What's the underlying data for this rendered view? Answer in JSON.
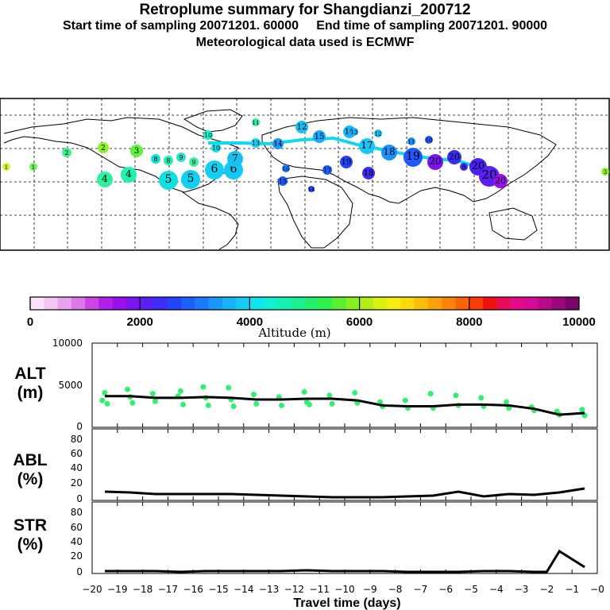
{
  "title": "Retroplume summary for Shangdianzi_200712",
  "subtitle_start_label": "Start time of sampling 20071201. 60000",
  "subtitle_end_label": "End time of sampling 20071201. 90000",
  "met_line": "Meteorological data used is ECMWF",
  "map_labels": [
    "1",
    "2",
    "3",
    "4",
    "5",
    "6",
    "7",
    "8",
    "9",
    "10",
    "11",
    "12",
    "13",
    "14",
    "15",
    "16",
    "17",
    "18",
    "19",
    "20"
  ],
  "colorbar": {
    "label": "Altitude (m)",
    "ticks": [
      "0",
      "2000",
      "4000",
      "6000",
      "8000",
      "10000"
    ],
    "colors": [
      "#fbe4fb",
      "#f3c6f3",
      "#e9a3ee",
      "#dc78e8",
      "#cc44e6",
      "#b41ee6",
      "#9a10ea",
      "#7a14f0",
      "#5a1ef6",
      "#3c2cf8",
      "#2244fa",
      "#1c60fb",
      "#1a7cfc",
      "#1898fc",
      "#16b2fa",
      "#12cdf6",
      "#0ee5ee",
      "#10f0d4",
      "#16f0b2",
      "#1cf090",
      "#22f06c",
      "#30f04c",
      "#58f030",
      "#86f020",
      "#b2f018",
      "#daf012",
      "#f6ee10",
      "#fcd80c",
      "#fcbe0a",
      "#fca208",
      "#fc8408",
      "#fa6408",
      "#f83c08",
      "#f01010",
      "#e80c58",
      "#e60a88",
      "#d60a98",
      "#ba0a8c",
      "#9a087c",
      "#7a066a"
    ]
  },
  "panels": {
    "alt": {
      "label1": "ALT",
      "label2": "(m)",
      "yticks": [
        "10000",
        "5000",
        "0"
      ]
    },
    "abl": {
      "label1": "ABL",
      "label2": "(%)",
      "yticks": [
        "80",
        "60",
        "40",
        "20",
        "0"
      ]
    },
    "str": {
      "label1": "STR",
      "label2": "(%)",
      "yticks": [
        "80",
        "60",
        "40",
        "20",
        "0"
      ]
    }
  },
  "xaxis": {
    "label": "Travel time (days)",
    "ticks": [
      "−20",
      "−19",
      "−18",
      "−17",
      "−16",
      "−15",
      "−14",
      "−13",
      "−12",
      "−11",
      "−10",
      "−9",
      "−8",
      "−7",
      "−6",
      "−5",
      "−4",
      "−3",
      "−2",
      "−1",
      "−0"
    ]
  },
  "chart_data": {
    "type": "line",
    "x_label": "Travel time (days)",
    "x_range": [
      -20,
      0
    ],
    "series": [
      {
        "name": "ALT (m)",
        "ylim": [
          0,
          10000
        ],
        "x": [
          -19.5,
          -18.5,
          -17.5,
          -16.5,
          -15.5,
          -14.5,
          -13.5,
          -12.5,
          -11.5,
          -10.5,
          -9.5,
          -8.5,
          -7.5,
          -6.5,
          -5.5,
          -4.5,
          -3.5,
          -2.5,
          -1.5,
          -0.5
        ],
        "values": [
          3700,
          3700,
          3500,
          3500,
          3600,
          3500,
          3300,
          3300,
          3400,
          3400,
          3200,
          2600,
          2500,
          2500,
          2700,
          2700,
          2600,
          2200,
          1500,
          1700
        ],
        "scatter_x": [
          -19.6,
          -19.5,
          -19.4,
          -18.6,
          -18.5,
          -18.4,
          -17.6,
          -17.5,
          -16.6,
          -16.5,
          -16.4,
          -15.6,
          -15.5,
          -15.4,
          -14.6,
          -14.5,
          -14.4,
          -13.6,
          -13.5,
          -12.6,
          -12.5,
          -11.6,
          -11.5,
          -11.4,
          -10.6,
          -10.5,
          -9.6,
          -9.5,
          -8.6,
          -8.5,
          -7.6,
          -7.5,
          -6.6,
          -6.5,
          -5.6,
          -5.5,
          -4.6,
          -4.5,
          -3.6,
          -3.5,
          -2.6,
          -2.5,
          -1.6,
          -1.5,
          -0.6,
          -0.5
        ],
        "scatter_values": [
          3200,
          4100,
          2800,
          4500,
          3600,
          2900,
          4000,
          3100,
          3700,
          4300,
          2700,
          4800,
          3500,
          2600,
          4700,
          3300,
          2500,
          3900,
          2800,
          3600,
          2600,
          4200,
          3000,
          2700,
          3800,
          2800,
          4100,
          2900,
          3000,
          2500,
          3200,
          2300,
          4000,
          2300,
          3800,
          2600,
          3500,
          2500,
          3000,
          2300,
          2400,
          2000,
          1900,
          1500,
          2100,
          1400
        ]
      },
      {
        "name": "ABL (%)",
        "ylim": [
          0,
          90
        ],
        "x": [
          -19.5,
          -18.5,
          -17.5,
          -16.5,
          -15.5,
          -14.5,
          -13.5,
          -12.5,
          -11.5,
          -10.5,
          -9.5,
          -8.5,
          -7.5,
          -6.5,
          -5.5,
          -4.5,
          -3.5,
          -2.5,
          -1.5,
          -0.5
        ],
        "values": [
          11,
          10,
          8,
          8,
          8,
          8,
          7,
          6,
          5,
          4,
          4,
          4,
          5,
          6,
          11,
          5,
          8,
          7,
          10,
          15
        ]
      },
      {
        "name": "STR (%)",
        "ylim": [
          0,
          90
        ],
        "x": [
          -19.5,
          -18.5,
          -17.5,
          -16.5,
          -15.5,
          -14.5,
          -13.5,
          -12.5,
          -11.5,
          -10.5,
          -9.5,
          -8.5,
          -7.5,
          -6.5,
          -5.5,
          -4.5,
          -3.5,
          -2.5,
          -2.0,
          -1.5,
          -0.5
        ],
        "values": [
          3,
          3,
          3,
          2,
          3,
          3,
          3,
          3,
          4,
          3,
          3,
          3,
          2,
          2,
          2,
          3,
          3,
          2,
          2,
          28,
          8
        ]
      }
    ]
  }
}
